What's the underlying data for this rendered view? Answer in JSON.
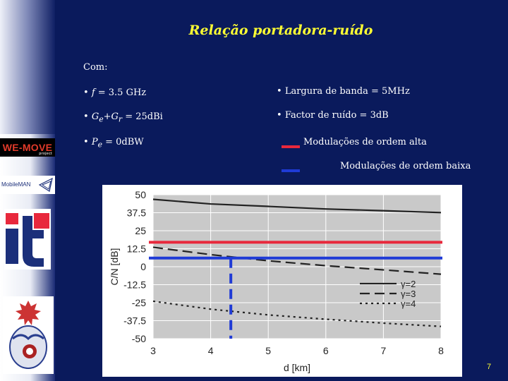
{
  "slide": {
    "title": "Relação portadora-ruído",
    "com_label": "Com:",
    "params_left": [
      {
        "bullet": "•",
        "var": "f",
        "text": " = 3.5 GHz"
      },
      {
        "bullet": "•",
        "var": "G",
        "sub1": "e",
        "plus": "+G",
        "sub2": "r",
        "text": " = 25dBi"
      },
      {
        "bullet": "•",
        "var": "P",
        "sub1": "e",
        "text": " = 0dBW"
      }
    ],
    "params_right": [
      {
        "bullet": "•",
        "text": "Largura de banda = 5MHz"
      },
      {
        "bullet": "•",
        "text": "Factor de ruído = 3dB"
      }
    ],
    "mod_legend": [
      {
        "label": "Modulações de ordem alta",
        "color": "#e8283c"
      },
      {
        "label": "Modulações de ordem baixa",
        "color": "#1f3bd6"
      }
    ],
    "slide_number": "7"
  },
  "logos": {
    "wemove": "WE-MOVE",
    "wemove_small": "project",
    "mobileman": "MobileMAN"
  },
  "chart_data": {
    "type": "line",
    "xlabel": "d [km]",
    "ylabel": "C/N [dB]",
    "xlim": [
      3,
      8
    ],
    "ylim": [
      -50,
      50
    ],
    "xticks": [
      3,
      4,
      5,
      6,
      7,
      8
    ],
    "yticks": [
      50,
      37.5,
      25,
      12.5,
      0,
      -12.5,
      -25,
      -37.5,
      -50
    ],
    "grid": true,
    "legend_position": "right",
    "series": [
      {
        "name": "γ=2",
        "style": "solid",
        "color": "#222222",
        "x": [
          3,
          4,
          5,
          6,
          7,
          8
        ],
        "y": [
          46.8,
          43.6,
          41.9,
          40.1,
          38.9,
          37.6
        ]
      },
      {
        "name": "γ=3",
        "style": "dashed",
        "color": "#222222",
        "x": [
          3,
          4,
          5,
          6,
          7,
          8
        ],
        "y": [
          13.5,
          8.4,
          4.1,
          0.7,
          -2.2,
          -5.2
        ]
      },
      {
        "name": "γ=4",
        "style": "dotted",
        "color": "#222222",
        "x": [
          3,
          4,
          5,
          6,
          7,
          8
        ],
        "y": [
          -24,
          -29.5,
          -33.5,
          -36.5,
          -39.2,
          -41.5
        ]
      }
    ],
    "thresholds": [
      {
        "label": "Modulações de ordem alta",
        "y": 17,
        "color": "#e8283c"
      },
      {
        "label": "Modulações de ordem baixa",
        "y": 6,
        "color": "#1f3bd6"
      }
    ],
    "threshold_marker_x": 4.35
  }
}
